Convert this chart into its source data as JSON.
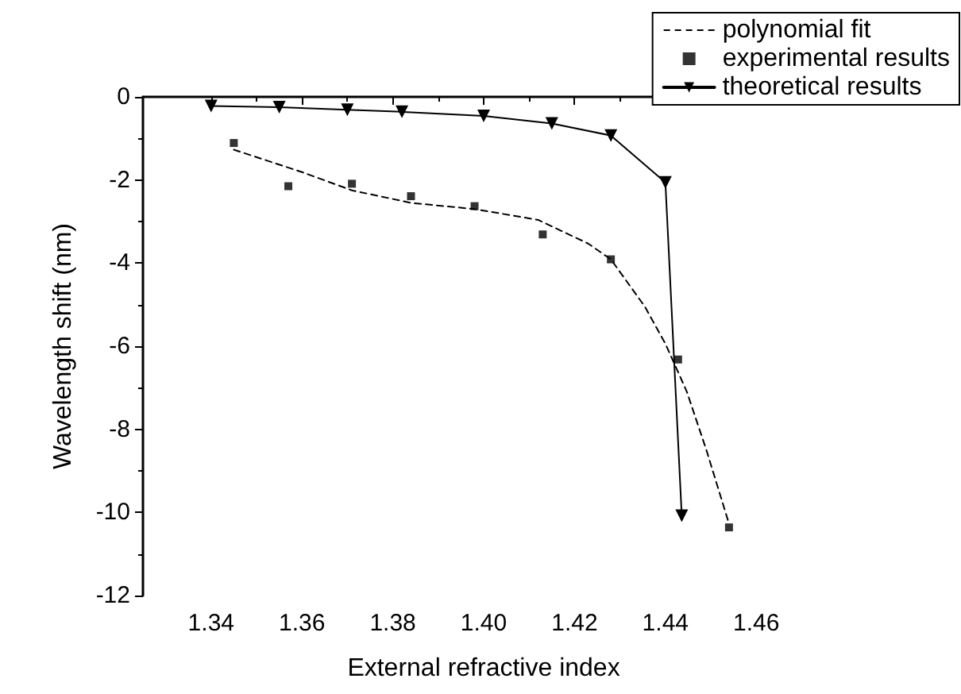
{
  "chart_data": {
    "type": "line",
    "xlabel": "External refractive index",
    "ylabel": "Wavelength shift (nm)",
    "xlim": [
      1.325,
      1.475
    ],
    "xticks": [
      1.34,
      1.36,
      1.38,
      {
        "value": 1.4,
        "label": "1.40"
      },
      1.42,
      1.44,
      1.46
    ],
    "ylim": [
      -12,
      0
    ],
    "yticks": [
      -12,
      -10,
      -8,
      -6,
      -4,
      -2,
      0
    ],
    "grid": false,
    "legend": "top right",
    "series": [
      {
        "name": "polynomial fit",
        "type": "line",
        "color": "#000000",
        "line_style": "dashed",
        "marker": "none",
        "x": [
          1.345,
          1.36,
          1.371,
          1.384,
          1.398,
          1.412,
          1.423,
          1.428,
          1.4355,
          1.44,
          1.4447,
          1.449,
          1.454
        ],
        "values": [
          -1.27,
          -1.81,
          -2.25,
          -2.55,
          -2.7,
          -2.96,
          -3.53,
          -3.91,
          -5.05,
          -5.94,
          -7.09,
          -8.49,
          -10.27
        ]
      },
      {
        "name": "experimental results",
        "type": "scatter",
        "color": "#000000",
        "marker": "square",
        "x": [
          1.345,
          1.357,
          1.371,
          1.384,
          1.398,
          1.413,
          1.428,
          1.4428,
          1.454
        ],
        "values": [
          -1.11,
          -2.15,
          -2.09,
          -2.39,
          -2.63,
          -3.31,
          -3.91,
          -6.32,
          -10.36
        ]
      },
      {
        "name": "theoretical results",
        "type": "line",
        "color": "#000000",
        "line_style": "solid",
        "marker": "triangle",
        "x": [
          1.34,
          1.355,
          1.37,
          1.382,
          1.4,
          1.415,
          1.428,
          1.44,
          1.4436
        ],
        "values": [
          -0.22,
          -0.25,
          -0.31,
          -0.36,
          -0.46,
          -0.64,
          -0.93,
          -2.06,
          -10.08
        ]
      }
    ]
  }
}
